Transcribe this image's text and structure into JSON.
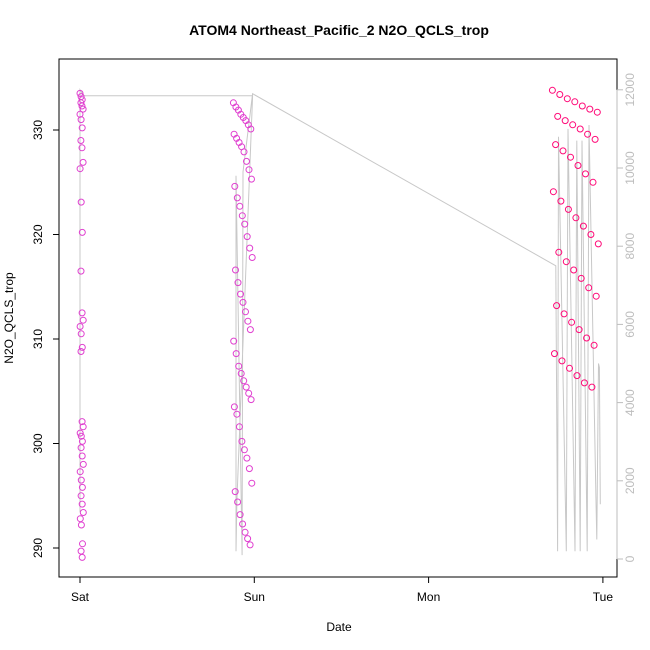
{
  "chart_data": {
    "type": "scatter",
    "title": "ATOM4 Northeast_Pacific_2 N2O_QCLS_trop",
    "xlabel": "Date",
    "ylabel": "N2O_QCLS_trop",
    "x_ticks": [
      "Sat",
      "Sun",
      "Mon",
      "Tue"
    ],
    "x_range_days": [
      0,
      3.03
    ],
    "ylim": [
      289,
      334
    ],
    "y_ticks": [
      290,
      300,
      310,
      320,
      330
    ],
    "y2lim": [
      0,
      12000
    ],
    "y2_ticks": [
      0,
      2000,
      4000,
      6000,
      8000,
      10000,
      12000
    ],
    "grid": false,
    "colors": {
      "points_light": "#e040d0",
      "points_dense": "#ff0a78",
      "altitude_line": "#c8c8c8"
    },
    "series": [
      {
        "type": "scatter",
        "axis": "left",
        "segments": [
          {
            "x_start": 0.0,
            "x_end": 0.01,
            "values": [
              333.5,
              333.2,
              332.9,
              332.6,
              332.3,
              332.0,
              331.5,
              331.0,
              330.2,
              329.0,
              328.3,
              326.9,
              326.3,
              323.1,
              320.2,
              316.5,
              312.5,
              311.8,
              311.2,
              310.5,
              309.2,
              308.8,
              302.1,
              301.6,
              301.0,
              300.7,
              300.2,
              299.6,
              298.8,
              298.0,
              297.3,
              296.5,
              295.8,
              295.0,
              294.2,
              293.4,
              292.8,
              292.2,
              290.4,
              289.7,
              289.1
            ]
          },
          {
            "x_start": 0.88,
            "x_end": 0.99,
            "values": [
              332.6,
              332.2,
              331.9,
              331.5,
              331.2,
              330.9,
              330.5,
              330.1,
              329.6,
              329.2,
              328.8,
              328.4,
              327.9,
              327.0,
              326.2,
              325.3,
              324.6,
              323.5,
              322.7,
              321.8,
              321.0,
              319.8,
              318.7,
              317.8,
              316.6,
              315.4,
              314.3,
              313.5,
              312.6,
              311.7,
              310.9,
              309.8,
              308.6,
              307.4,
              306.7,
              306.0,
              305.4,
              304.8,
              304.2,
              303.5,
              302.8,
              301.6,
              300.2,
              299.4,
              298.6,
              297.6,
              296.2,
              295.4,
              294.4,
              293.2,
              292.3,
              291.5,
              290.9,
              290.3
            ]
          },
          {
            "x_start": 2.71,
            "x_end": 2.98,
            "values": [
              333.8,
              333.4,
              333.0,
              332.7,
              332.3,
              332.0,
              331.7,
              331.3,
              330.9,
              330.5,
              330.1,
              329.6,
              329.1,
              328.6,
              328.0,
              327.4,
              326.6,
              325.8,
              325.0,
              324.1,
              323.2,
              322.4,
              321.6,
              320.8,
              320.0,
              319.1,
              318.3,
              317.4,
              316.6,
              315.8,
              314.9,
              314.1,
              313.2,
              312.4,
              311.6,
              310.9,
              310.1,
              309.4,
              308.6,
              307.9,
              307.2,
              306.5,
              305.8,
              305.4
            ]
          }
        ]
      },
      {
        "type": "line",
        "axis": "right",
        "points": [
          [
            0.0,
            1200
          ],
          [
            0.0,
            12000
          ],
          [
            0.02,
            11850
          ],
          [
            0.98,
            11850
          ],
          [
            0.99,
            11850
          ],
          [
            0.9,
            1500
          ],
          [
            0.895,
            200
          ],
          [
            0.895,
            9800
          ],
          [
            0.93,
            100
          ],
          [
            0.935,
            9900
          ],
          [
            0.99,
            11900
          ],
          [
            2.73,
            7500
          ],
          [
            2.74,
            200
          ],
          [
            2.745,
            10800
          ],
          [
            2.79,
            200
          ],
          [
            2.8,
            11000
          ],
          [
            2.84,
            200
          ],
          [
            2.85,
            10700
          ],
          [
            2.87,
            200
          ],
          [
            2.88,
            10700
          ],
          [
            2.91,
            200
          ],
          [
            2.92,
            11100
          ],
          [
            2.96,
            1600
          ],
          [
            2.965,
            500
          ],
          [
            2.975,
            5000
          ],
          [
            2.98,
            4900
          ],
          [
            2.985,
            1400
          ]
        ]
      }
    ]
  }
}
